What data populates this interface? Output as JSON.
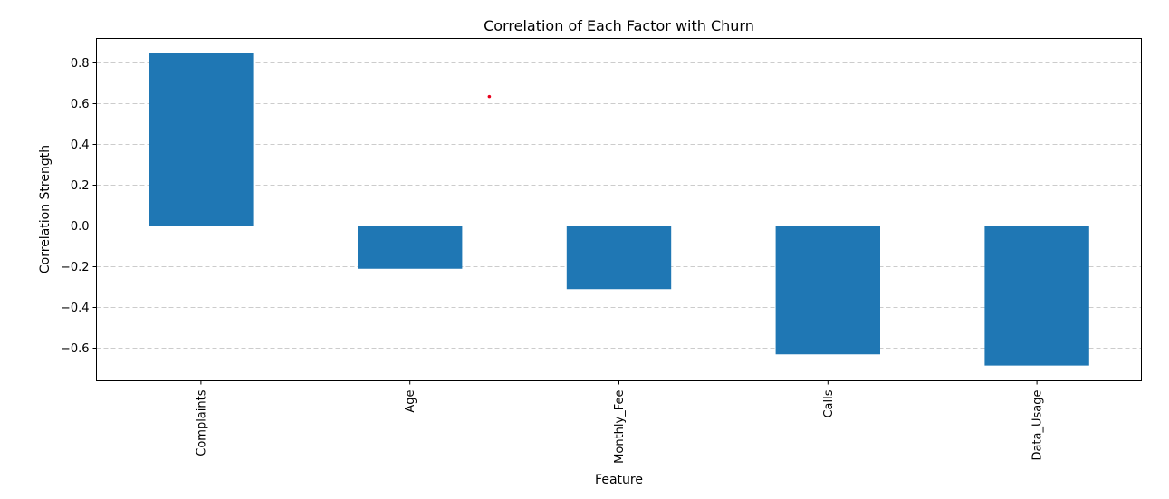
{
  "chart_data": {
    "type": "bar",
    "title": "Correlation of Each Factor with Churn",
    "xlabel": "Feature",
    "ylabel": "Correlation Strength",
    "categories": [
      "Complaints",
      "Age",
      "Monthly_Fee",
      "Calls",
      "Data_Usage"
    ],
    "values": [
      0.85,
      -0.21,
      -0.31,
      -0.63,
      -0.685
    ],
    "ylim": [
      -0.76,
      0.92
    ],
    "yticks": [
      -0.6,
      -0.4,
      -0.2,
      0.0,
      0.2,
      0.4,
      0.6,
      0.8
    ],
    "ytick_labels": [
      "−0.6",
      "−0.4",
      "−0.2",
      "0.0",
      "0.2",
      "0.4",
      "0.6",
      "0.8"
    ],
    "grid": true,
    "legend": "none",
    "bar_color": "#1f77b4",
    "annotation_points": [
      {
        "category": "Monthly_Fee",
        "offset": -0.62,
        "y": 0.635,
        "color": "#e8001c"
      }
    ]
  }
}
